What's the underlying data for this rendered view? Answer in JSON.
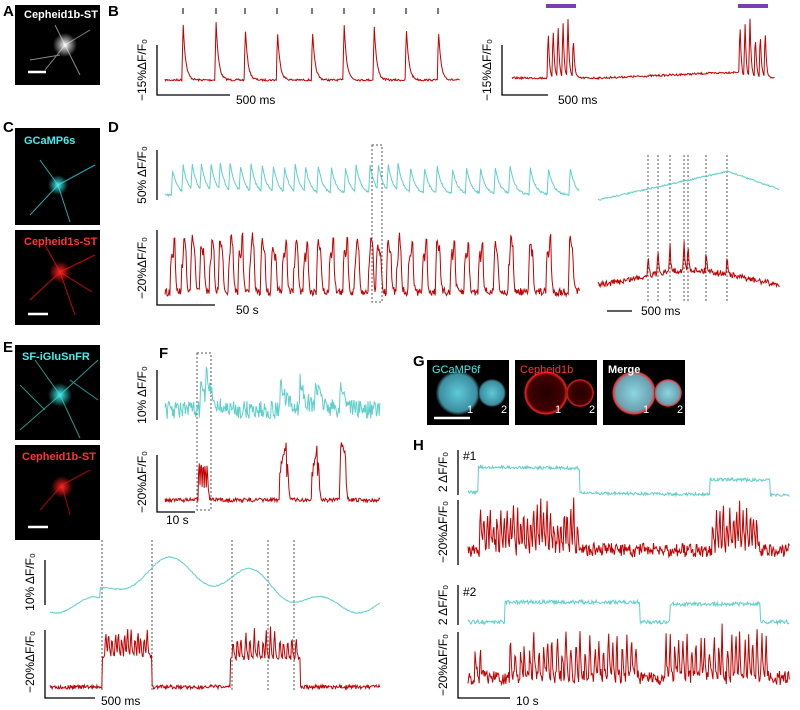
{
  "panels": {
    "A": {
      "letter": "A",
      "image_label": "Cepheid1b-ST"
    },
    "B": {
      "letter": "B",
      "left": {
        "y_scale": "−15%ΔF/F₀",
        "x_scale": "500 ms"
      },
      "right": {
        "y_scale": "−15%ΔF/F₀",
        "x_scale": "500 ms"
      }
    },
    "C": {
      "letter": "C",
      "image_labels": [
        "GCaMP6s",
        "Cepheid1s-ST"
      ]
    },
    "D": {
      "letter": "D",
      "y_scale_top": "50% ΔF/F₀",
      "y_scale_bottom": "−20%ΔF/F₀",
      "x_scale": "50 s",
      "zoom_x_scale": "500 ms"
    },
    "E": {
      "letter": "E",
      "image_labels": [
        "SF-iGluSnFR",
        "Cepheid1b-ST"
      ]
    },
    "F": {
      "letter": "F",
      "y_scale_top": "10% ΔF/F₀",
      "y_scale_bottom": "−20%ΔF/F₀",
      "x_scale": "10 s",
      "zoom": {
        "y_scale_top": "10% ΔF/F₀",
        "y_scale_bottom": "−20%ΔF/F₀",
        "x_scale": "500 ms"
      }
    },
    "G": {
      "letter": "G",
      "image_labels": [
        "GCaMP6f",
        "Cepheid1b",
        "Merge"
      ],
      "cell_labels": [
        "1",
        "2"
      ]
    },
    "H": {
      "letter": "H",
      "cells": [
        {
          "label": "#1",
          "y_scale_top": "2 ΔF/F₀",
          "y_scale_bottom": "−20%ΔF/F₀"
        },
        {
          "label": "#2",
          "y_scale_top": "2 ΔF/F₀",
          "y_scale_bottom": "−20%ΔF/F₀"
        }
      ],
      "x_scale": "10 s"
    }
  }
}
